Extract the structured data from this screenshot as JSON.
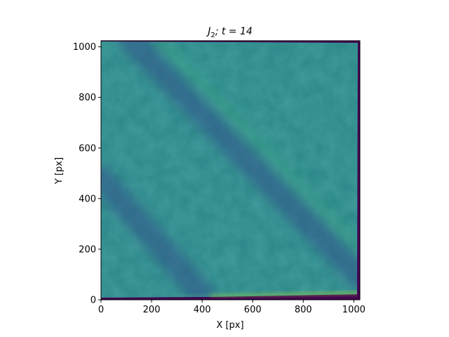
{
  "chart_data": {
    "type": "heatmap",
    "title_main": "J",
    "title_sub": "2",
    "title_rest": "; t = 14",
    "xlabel": "X [px]",
    "ylabel": "Y [px]",
    "xlim": [
      0,
      1024
    ],
    "ylim": [
      0,
      1024
    ],
    "xticks": [
      0,
      200,
      400,
      600,
      800,
      1000
    ],
    "yticks": [
      0,
      200,
      400,
      600,
      800,
      1000
    ],
    "colormap": "viridis",
    "base_color": "#2e8a8a",
    "colorbar": false,
    "grid": false,
    "bands": [
      {
        "label": "upper dark diagonal band",
        "from": [
          120,
          1024
        ],
        "to": [
          1024,
          90
        ],
        "tone": "dark"
      },
      {
        "label": "lower dark diagonal band",
        "from": [
          0,
          480
        ],
        "to": [
          400,
          20
        ],
        "tone": "dark"
      },
      {
        "label": "bright streak",
        "from": [
          230,
          1024
        ],
        "to": [
          1024,
          200
        ],
        "tone": "bright"
      },
      {
        "label": "bright edge bottom",
        "from": [
          300,
          0
        ],
        "to": [
          1024,
          20
        ],
        "tone": "bright"
      }
    ]
  }
}
